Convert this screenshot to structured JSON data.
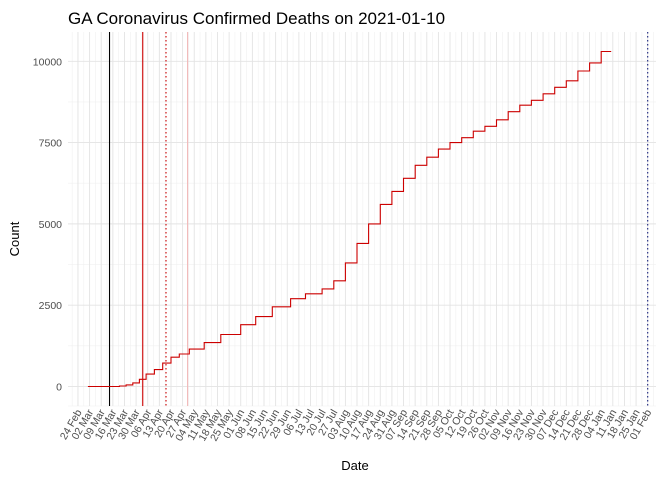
{
  "chart_data": {
    "type": "line",
    "title": "GA Coronavirus Confirmed Deaths on 2021-01-10",
    "xlabel": "Date",
    "ylabel": "Count",
    "xlim": [
      "2020-02-18",
      "2021-02-06"
    ],
    "ylim": [
      -600,
      10900
    ],
    "y_ticks": [
      0,
      2500,
      5000,
      7500,
      10000
    ],
    "y_tick_labels": [
      "0",
      "2500",
      "5000",
      "7500",
      "10000"
    ],
    "x_tick_dates": [
      "2020-02-24",
      "2020-03-02",
      "2020-03-09",
      "2020-03-16",
      "2020-03-23",
      "2020-03-30",
      "2020-04-06",
      "2020-04-13",
      "2020-04-20",
      "2020-04-27",
      "2020-05-04",
      "2020-05-11",
      "2020-05-18",
      "2020-05-25",
      "2020-06-01",
      "2020-06-08",
      "2020-06-15",
      "2020-06-22",
      "2020-06-29",
      "2020-07-06",
      "2020-07-13",
      "2020-07-20",
      "2020-07-27",
      "2020-08-03",
      "2020-08-10",
      "2020-08-17",
      "2020-08-24",
      "2020-08-31",
      "2020-09-07",
      "2020-09-14",
      "2020-09-21",
      "2020-09-28",
      "2020-10-05",
      "2020-10-12",
      "2020-10-19",
      "2020-10-26",
      "2020-11-02",
      "2020-11-09",
      "2020-11-16",
      "2020-11-23",
      "2020-11-30",
      "2020-12-07",
      "2020-12-14",
      "2020-12-21",
      "2020-12-28",
      "2021-01-04",
      "2021-01-11",
      "2021-01-18",
      "2021-01-25",
      "2021-02-01"
    ],
    "x_tick_labels": [
      "24 Feb",
      "02 Mar",
      "09 Mar",
      "16 Mar",
      "23 Mar",
      "30 Mar",
      "06 Apr",
      "13 Apr",
      "20 Apr",
      "27 Apr",
      "04 May",
      "11 May",
      "18 May",
      "25 May",
      "01 Jun",
      "08 Jun",
      "15 Jun",
      "22 Jun",
      "29 Jun",
      "06 Jul",
      "13 Jul",
      "20 Jul",
      "27 Jul",
      "03 Aug",
      "10 Aug",
      "17 Aug",
      "24 Aug",
      "31 Aug",
      "07 Sep",
      "14 Sep",
      "21 Sep",
      "28 Sep",
      "05 Oct",
      "12 Oct",
      "19 Oct",
      "26 Oct",
      "02 Nov",
      "09 Nov",
      "16 Nov",
      "23 Nov",
      "30 Nov",
      "07 Dec",
      "14 Dec",
      "21 Dec",
      "28 Dec",
      "04 Jan",
      "11 Jan",
      "18 Jan",
      "25 Jan",
      "01 Feb"
    ],
    "grid": true,
    "series": [
      {
        "color": "#cc0000",
        "x": [
          "2020-03-01",
          "2020-03-12",
          "2020-03-16",
          "2020-03-20",
          "2020-03-24",
          "2020-03-28",
          "2020-04-01",
          "2020-04-05",
          "2020-04-10",
          "2020-04-15",
          "2020-04-20",
          "2020-04-25",
          "2020-05-01",
          "2020-05-10",
          "2020-05-20",
          "2020-06-01",
          "2020-06-10",
          "2020-06-20",
          "2020-07-01",
          "2020-07-10",
          "2020-07-20",
          "2020-07-27",
          "2020-08-03",
          "2020-08-10",
          "2020-08-17",
          "2020-08-24",
          "2020-08-31",
          "2020-09-07",
          "2020-09-14",
          "2020-09-21",
          "2020-09-28",
          "2020-10-05",
          "2020-10-12",
          "2020-10-19",
          "2020-10-26",
          "2020-11-02",
          "2020-11-09",
          "2020-11-16",
          "2020-11-23",
          "2020-11-30",
          "2020-12-07",
          "2020-12-14",
          "2020-12-21",
          "2020-12-28",
          "2021-01-04",
          "2021-01-07",
          "2021-01-10"
        ],
        "y": [
          0,
          0,
          0,
          15,
          50,
          110,
          220,
          380,
          520,
          720,
          900,
          1000,
          1150,
          1350,
          1600,
          1900,
          2150,
          2450,
          2700,
          2850,
          3000,
          3250,
          3800,
          4400,
          5000,
          5600,
          6000,
          6400,
          6800,
          7050,
          7300,
          7500,
          7650,
          7850,
          8000,
          8200,
          8450,
          8650,
          8800,
          9000,
          9200,
          9400,
          9700,
          9950,
          10300,
          10300,
          10300
        ]
      }
    ],
    "reference_lines": [
      {
        "date": "2020-03-14",
        "color": "#000000",
        "style": "solid"
      },
      {
        "date": "2020-04-03",
        "color": "#cc0000",
        "style": "solid"
      },
      {
        "date": "2020-04-17",
        "color": "#cc0000",
        "style": "dotted"
      },
      {
        "date": "2020-04-30",
        "color": "#f2b8b8",
        "style": "solid"
      },
      {
        "date": "2021-02-01",
        "color": "#1a237e",
        "style": "dotted"
      }
    ]
  }
}
